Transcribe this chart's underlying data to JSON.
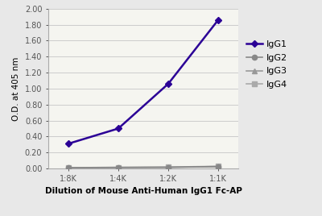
{
  "x_positions": [
    0,
    1,
    2,
    3
  ],
  "x_labels": [
    "1:8K",
    "1:4K",
    "1:2K",
    "1:1K"
  ],
  "series": [
    {
      "label": "IgG1",
      "values": [
        0.31,
        0.5,
        1.06,
        1.86
      ],
      "color": "#2B0096",
      "marker": "D",
      "markersize": 4.5,
      "linewidth": 1.8,
      "zorder": 5
    },
    {
      "label": "IgG2",
      "values": [
        0.01,
        0.015,
        0.015,
        0.025
      ],
      "color": "#888888",
      "marker": "o",
      "markersize": 4.5,
      "linewidth": 1.2,
      "zorder": 4
    },
    {
      "label": "IgG3",
      "values": [
        0.008,
        0.012,
        0.015,
        0.022
      ],
      "color": "#999999",
      "marker": "^",
      "markersize": 4.5,
      "linewidth": 1.2,
      "zorder": 3
    },
    {
      "label": "IgG4",
      "values": [
        0.008,
        0.012,
        0.018,
        0.028
      ],
      "color": "#aaaaaa",
      "marker": "s",
      "markersize": 4.5,
      "linewidth": 1.2,
      "zorder": 2
    }
  ],
  "ylabel": "O.D. at 405 nm",
  "xlabel": "Dilution of Mouse Anti-Human IgG1 Fc-AP",
  "ylim": [
    0.0,
    2.0
  ],
  "yticks": [
    0.0,
    0.2,
    0.4,
    0.6,
    0.8,
    1.0,
    1.2,
    1.4,
    1.6,
    1.8,
    2.0
  ],
  "background_color": "#e8e8e8",
  "plot_bg_color": "#f5f5f0",
  "grid_color": "#cccccc",
  "axis_label_fontsize": 7.5,
  "tick_fontsize": 7,
  "legend_fontsize": 8
}
